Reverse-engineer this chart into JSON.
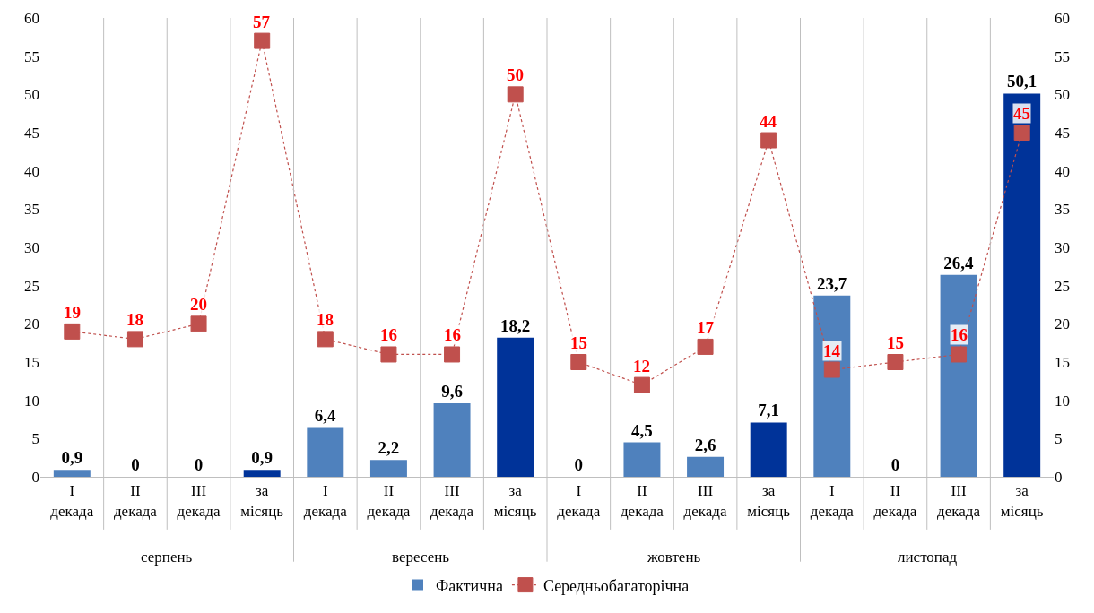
{
  "chart_data": {
    "type": "bar",
    "categories": [
      "I декада",
      "II декада",
      "III декада",
      "за місяць",
      "I декада",
      "II декада",
      "III декада",
      "за місяць",
      "I декада",
      "II декада",
      "III декада",
      "за місяць",
      "I декада",
      "II декада",
      "III декада",
      "за місяць"
    ],
    "series": [
      {
        "name": "Фактична",
        "colors": [
          "#4f81bd",
          "#4f81bd",
          "#4f81bd",
          "#003399",
          "#4f81bd",
          "#4f81bd",
          "#4f81bd",
          "#003399",
          "#4f81bd",
          "#4f81bd",
          "#4f81bd",
          "#003399",
          "#4f81bd",
          "#4f81bd",
          "#4f81bd",
          "#003399"
        ],
        "values": [
          0.9,
          0,
          0,
          0.9,
          6.4,
          2.2,
          9.6,
          18.2,
          0,
          4.5,
          2.6,
          7.1,
          23.7,
          0,
          26.4,
          50.1
        ],
        "value_labels": [
          "0,9",
          "0",
          "0",
          "0,9",
          "6,4",
          "2,2",
          "9,6",
          "18,2",
          "0",
          "4,5",
          "2,6",
          "7,1",
          "23,7",
          "0",
          "26,4",
          "50,1"
        ]
      },
      {
        "name": "Середньобагаторічна",
        "type": "line",
        "color": "#c0504d",
        "values": [
          19,
          18,
          20,
          57,
          18,
          16,
          16,
          50,
          15,
          12,
          17,
          44,
          14,
          15,
          16,
          45
        ],
        "value_labels": [
          "19",
          "18",
          "20",
          "57",
          "18",
          "16",
          "16",
          "50",
          "15",
          "12",
          "17",
          "44",
          "14",
          "15",
          "16",
          "45"
        ]
      }
    ],
    "annotations": [
      "серпень",
      "вересень",
      "жовтень",
      "листопад"
    ],
    "ylim": [
      0,
      60
    ],
    "yticks": [
      0,
      5,
      10,
      15,
      20,
      25,
      30,
      35,
      40,
      45,
      50,
      55,
      60
    ],
    "y2lim": [
      0,
      60
    ],
    "y2ticks": [
      0,
      5,
      10,
      15,
      20,
      25,
      30,
      35,
      40,
      45,
      50,
      55,
      60
    ],
    "grid": "x",
    "legend": "bottom",
    "marker": "square",
    "line_style": "dotted"
  }
}
